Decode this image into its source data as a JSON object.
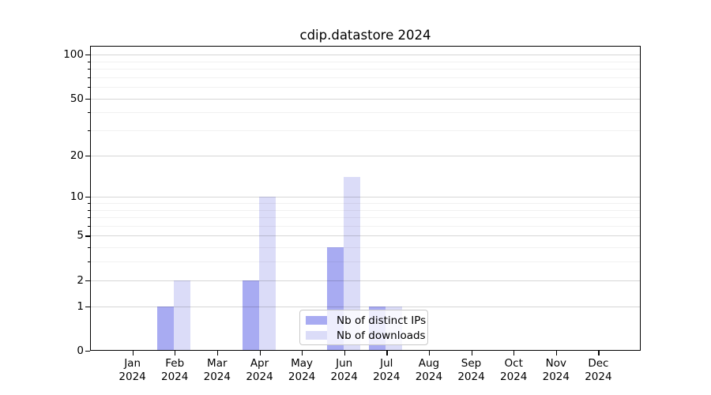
{
  "title": "cdip.datastore 2024",
  "chart_data": {
    "type": "bar",
    "x_months": [
      "Jan",
      "Feb",
      "Mar",
      "Apr",
      "May",
      "Jun",
      "Jul",
      "Aug",
      "Sep",
      "Oct",
      "Nov",
      "Dec"
    ],
    "x_year": "2024",
    "series": [
      {
        "name": "Nb of distinct IPs",
        "color": "#a8abf2",
        "values": [
          0,
          1,
          0,
          2,
          0,
          4,
          1,
          0,
          0,
          0,
          0,
          0
        ]
      },
      {
        "name": "Nb of downloads",
        "color": "#dbdcf8",
        "values": [
          0,
          2,
          0,
          10,
          0,
          14,
          1,
          0,
          0,
          0,
          0,
          0
        ]
      }
    ],
    "yscale": "log1p",
    "ylim": [
      0,
      115
    ],
    "y_major_ticks": [
      0,
      1,
      2,
      5,
      10,
      20,
      50,
      100
    ],
    "y_minor_ticks": [
      3,
      4,
      6,
      7,
      8,
      9,
      30,
      40,
      60,
      70,
      80,
      90
    ],
    "grid": true,
    "legend_position": "lower center"
  },
  "colors": {
    "background": "#ffffff",
    "bar_distinct_ips": "#a8abf2",
    "bar_downloads": "#dbdcf8",
    "axis": "#000000",
    "grid_major": "rgba(0,0,0,0.16)",
    "grid_minor": "rgba(0,0,0,0.055)",
    "legend_border": "#c9c9c9"
  }
}
